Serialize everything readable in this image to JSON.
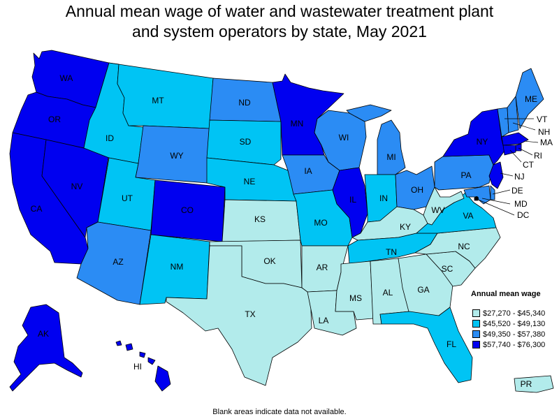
{
  "title_line1": "Annual mean wage of water and wastewater treatment plant",
  "title_line2": "and system operators by state, May 2021",
  "footnote": "Blank areas indicate data not available.",
  "legend": {
    "title": "Annual mean wage",
    "items": [
      {
        "label": "$27,270 - $45,340",
        "color": "#b2ebeb"
      },
      {
        "label": "$45,520 - $49,130",
        "color": "#00c4f4"
      },
      {
        "label": "$49,350 - $57,380",
        "color": "#2b8cf4"
      },
      {
        "label": "$57,740 - $76,300",
        "color": "#0000f0"
      }
    ]
  },
  "states": {
    "WA": {
      "label": "WA",
      "tier": 4
    },
    "OR": {
      "label": "OR",
      "tier": 4
    },
    "CA": {
      "label": "CA",
      "tier": 4
    },
    "NV": {
      "label": "NV",
      "tier": 4
    },
    "ID": {
      "label": "ID",
      "tier": 2
    },
    "MT": {
      "label": "MT",
      "tier": 2
    },
    "WY": {
      "label": "WY",
      "tier": 3
    },
    "UT": {
      "label": "UT",
      "tier": 2
    },
    "AZ": {
      "label": "AZ",
      "tier": 3
    },
    "CO": {
      "label": "CO",
      "tier": 4
    },
    "NM": {
      "label": "NM",
      "tier": 2
    },
    "ND": {
      "label": "ND",
      "tier": 3
    },
    "SD": {
      "label": "SD",
      "tier": 2
    },
    "NE": {
      "label": "NE",
      "tier": 2
    },
    "KS": {
      "label": "KS",
      "tier": 1
    },
    "OK": {
      "label": "OK",
      "tier": 1
    },
    "TX": {
      "label": "TX",
      "tier": 1
    },
    "MN": {
      "label": "MN",
      "tier": 4
    },
    "IA": {
      "label": "IA",
      "tier": 3
    },
    "MO": {
      "label": "MO",
      "tier": 2
    },
    "AR": {
      "label": "AR",
      "tier": 1
    },
    "LA": {
      "label": "LA",
      "tier": 1
    },
    "WI": {
      "label": "WI",
      "tier": 3
    },
    "IL": {
      "label": "IL",
      "tier": 4
    },
    "MI": {
      "label": "MI",
      "tier": 3
    },
    "IN": {
      "label": "IN",
      "tier": 2
    },
    "OH": {
      "label": "OH",
      "tier": 3
    },
    "KY": {
      "label": "KY",
      "tier": 1
    },
    "TN": {
      "label": "TN",
      "tier": 2
    },
    "MS": {
      "label": "MS",
      "tier": 1
    },
    "AL": {
      "label": "AL",
      "tier": 1
    },
    "GA": {
      "label": "GA",
      "tier": 1
    },
    "FL": {
      "label": "FL",
      "tier": 2
    },
    "SC": {
      "label": "SC",
      "tier": 1
    },
    "NC": {
      "label": "NC",
      "tier": 1
    },
    "VA": {
      "label": "VA",
      "tier": 2
    },
    "WV": {
      "label": "WV",
      "tier": 1
    },
    "PA": {
      "label": "PA",
      "tier": 3
    },
    "NY": {
      "label": "NY",
      "tier": 4
    },
    "VT": {
      "label": "VT",
      "tier": 3
    },
    "NH": {
      "label": "NH",
      "tier": 3
    },
    "ME": {
      "label": "ME",
      "tier": 3
    },
    "MA": {
      "label": "MA",
      "tier": 4
    },
    "RI": {
      "label": "RI",
      "tier": 4
    },
    "CT": {
      "label": "CT",
      "tier": 4
    },
    "NJ": {
      "label": "NJ",
      "tier": 4
    },
    "DE": {
      "label": "DE",
      "tier": 3
    },
    "MD": {
      "label": "MD",
      "tier": 3
    },
    "DC": {
      "label": "DC",
      "tier": 4
    },
    "AK": {
      "label": "AK",
      "tier": 4
    },
    "HI": {
      "label": "HI",
      "tier": 4
    },
    "PR": {
      "label": "PR",
      "tier": 1
    }
  }
}
